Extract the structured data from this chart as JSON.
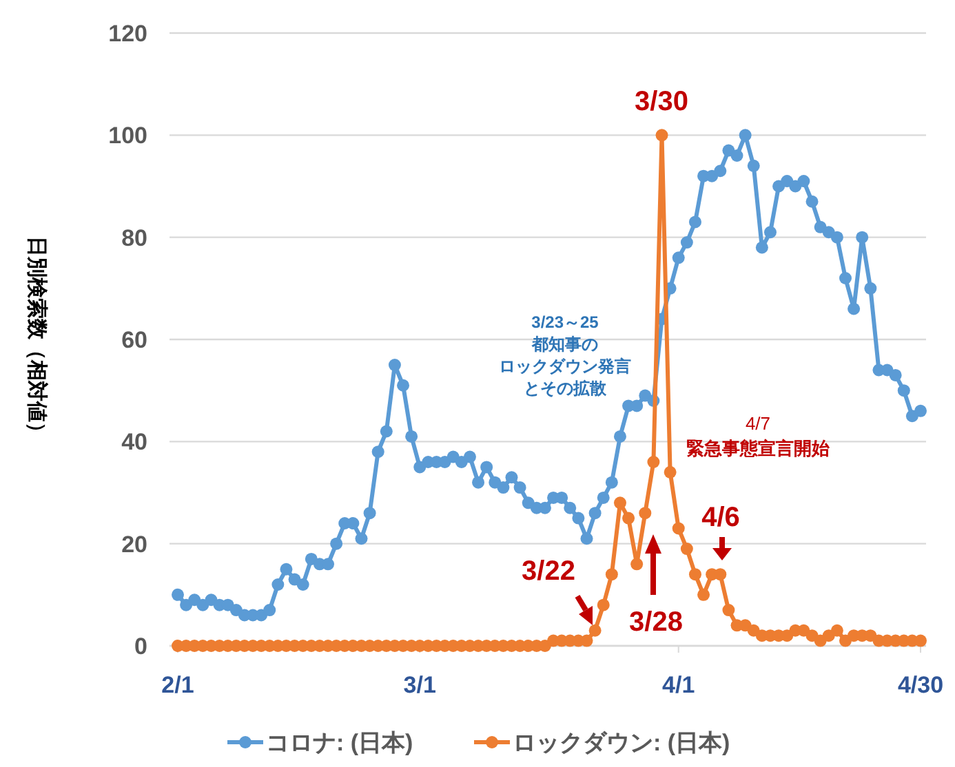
{
  "chart_data": {
    "type": "line",
    "ylabel": "日別検索数（相対値）",
    "categories": [
      "2/1",
      null,
      null,
      null,
      null,
      null,
      null,
      null,
      null,
      null,
      null,
      null,
      null,
      null,
      null,
      null,
      null,
      null,
      null,
      null,
      null,
      null,
      null,
      null,
      null,
      null,
      null,
      null,
      null,
      "3/1",
      null,
      null,
      null,
      null,
      null,
      null,
      null,
      null,
      null,
      null,
      null,
      null,
      null,
      null,
      null,
      null,
      null,
      null,
      null,
      null,
      null,
      null,
      null,
      null,
      null,
      null,
      null,
      null,
      null,
      null,
      "4/1",
      null,
      null,
      null,
      null,
      null,
      null,
      null,
      null,
      null,
      null,
      null,
      null,
      null,
      null,
      null,
      null,
      null,
      null,
      null,
      null,
      null,
      null,
      null,
      null,
      null,
      null,
      null,
      null,
      "4/30"
    ],
    "series": [
      {
        "name": "コロナ: (日本)",
        "color": "#5b9bd5",
        "values": [
          10,
          8,
          9,
          8,
          9,
          8,
          8,
          7,
          6,
          6,
          6,
          7,
          12,
          15,
          13,
          12,
          17,
          16,
          16,
          20,
          24,
          24,
          21,
          26,
          38,
          42,
          55,
          51,
          41,
          35,
          36,
          36,
          36,
          37,
          36,
          37,
          32,
          35,
          32,
          31,
          33,
          31,
          28,
          27,
          27,
          29,
          29,
          27,
          25,
          21,
          26,
          29,
          32,
          41,
          47,
          47,
          49,
          48,
          64,
          70,
          76,
          79,
          83,
          92,
          92,
          93,
          97,
          96,
          100,
          94,
          78,
          81,
          90,
          91,
          90,
          91,
          87,
          82,
          81,
          80,
          72,
          66,
          80,
          70,
          54,
          54,
          53,
          50,
          45,
          46
        ]
      },
      {
        "name": "ロックダウン: (日本)",
        "color": "#ed7d31",
        "values": [
          0,
          0,
          0,
          0,
          0,
          0,
          0,
          0,
          0,
          0,
          0,
          0,
          0,
          0,
          0,
          0,
          0,
          0,
          0,
          0,
          0,
          0,
          0,
          0,
          0,
          0,
          0,
          0,
          0,
          0,
          0,
          0,
          0,
          0,
          0,
          0,
          0,
          0,
          0,
          0,
          0,
          0,
          0,
          0,
          0,
          1,
          1,
          1,
          1,
          1,
          3,
          8,
          14,
          28,
          25,
          16,
          26,
          36,
          100,
          34,
          23,
          19,
          14,
          10,
          14,
          14,
          7,
          4,
          4,
          3,
          2,
          2,
          2,
          2,
          3,
          3,
          2,
          1,
          2,
          3,
          1,
          2,
          2,
          2,
          1,
          1,
          1,
          1,
          1,
          1
        ]
      }
    ],
    "ylim": [
      0,
      120
    ],
    "yticks": [
      0,
      20,
      40,
      60,
      80,
      100,
      120
    ],
    "grid": "y",
    "legend": "bottom",
    "marker": "circle",
    "line_style": "solid",
    "annotations": [
      "3/30",
      "3/22",
      "3/28",
      "4/6",
      "4/7",
      "緊急事態宣言開始",
      "3/23～25",
      "都知事の",
      "ロックダウン発言",
      "とその拡散"
    ]
  }
}
